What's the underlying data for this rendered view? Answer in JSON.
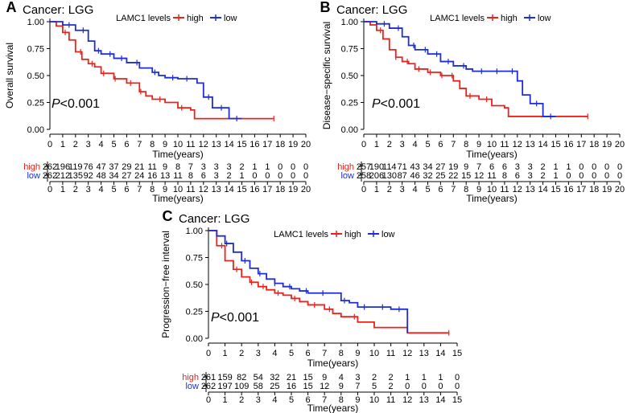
{
  "chart_data": [
    {
      "panel_label": "A",
      "type": "line",
      "title": "Cancer: LGG",
      "ylabel": "Overall survival",
      "xlabel": "Time(years)",
      "legend": {
        "title": "LAMC1 levels",
        "placement": "top-right",
        "entries": [
          "high",
          "low"
        ]
      },
      "pvalue_prefix": "P",
      "pvalue_rest": "<0.001",
      "xlim": [
        0,
        20
      ],
      "ylim": [
        0,
        1
      ],
      "x_ticks": [
        0,
        1,
        2,
        3,
        4,
        5,
        6,
        7,
        8,
        9,
        10,
        11,
        12,
        13,
        14,
        15,
        16,
        17,
        18,
        19,
        20
      ],
      "y_ticks": [
        "0.00",
        "0.25",
        "0.50",
        "0.75",
        "1.00"
      ],
      "series": [
        {
          "name": "high",
          "color": "#e8231c",
          "x": [
            0,
            0.5,
            1,
            1.5,
            2,
            2.5,
            3,
            3.5,
            4,
            5,
            6,
            7,
            7.5,
            8,
            9,
            10,
            11,
            11.3,
            12,
            13,
            14,
            15,
            16,
            17,
            17.5
          ],
          "y": [
            1.0,
            0.96,
            0.9,
            0.83,
            0.72,
            0.65,
            0.61,
            0.58,
            0.52,
            0.47,
            0.43,
            0.35,
            0.31,
            0.28,
            0.25,
            0.2,
            0.18,
            0.1,
            0.1,
            0.1,
            0.1,
            0.1,
            0.1,
            0.1,
            0.1
          ],
          "censor_x": [
            1.2,
            2.4,
            3.3,
            4.2,
            5.1,
            6.3,
            7.1,
            8.6,
            10.3,
            17.5
          ]
        },
        {
          "name": "low",
          "color": "#1f2ed1",
          "x": [
            0,
            1,
            2,
            3,
            3.5,
            4,
            5,
            6,
            7,
            8,
            8.5,
            9,
            10,
            11,
            11.5,
            12,
            12.7,
            13,
            14,
            14.5,
            15
          ],
          "y": [
            1.0,
            0.97,
            0.92,
            0.82,
            0.73,
            0.7,
            0.66,
            0.62,
            0.57,
            0.53,
            0.5,
            0.48,
            0.47,
            0.47,
            0.43,
            0.3,
            0.2,
            0.2,
            0.1,
            0.1,
            0.1
          ],
          "censor_x": [
            1.5,
            2.6,
            3.8,
            4.7,
            5.6,
            6.8,
            8.2,
            9.6,
            10.7,
            12.4,
            13.4,
            14.6
          ]
        }
      ],
      "risk_table": {
        "rows": [
          {
            "label": "high",
            "counts": [
              "262",
              "196",
              "119",
              "76",
              "47",
              "37",
              "29",
              "21",
              "11",
              "9",
              "8",
              "7",
              "3",
              "3",
              "3",
              "2",
              "1",
              "1",
              "0",
              "0",
              "0"
            ]
          },
          {
            "label": "low",
            "counts": [
              "262",
              "212",
              "135",
              "92",
              "48",
              "34",
              "27",
              "24",
              "16",
              "13",
              "11",
              "8",
              "6",
              "3",
              "2",
              "1",
              "0",
              "0",
              "0",
              "0",
              "0"
            ]
          }
        ],
        "xlabel": "Time(years)",
        "x_ticks": [
          0,
          1,
          2,
          3,
          4,
          5,
          6,
          7,
          8,
          9,
          10,
          11,
          12,
          13,
          14,
          15,
          16,
          17,
          18,
          19,
          20
        ]
      }
    },
    {
      "panel_label": "B",
      "type": "line",
      "title": "Cancer: LGG",
      "ylabel": "Disease−specific survival",
      "xlabel": "Time(years)",
      "legend": {
        "title": "LAMC1 levels",
        "placement": "top-right",
        "entries": [
          "high",
          "low"
        ]
      },
      "pvalue_prefix": "P",
      "pvalue_rest": "<0.001",
      "xlim": [
        0,
        20
      ],
      "ylim": [
        0,
        1
      ],
      "x_ticks": [
        0,
        1,
        2,
        3,
        4,
        5,
        6,
        7,
        8,
        9,
        10,
        11,
        12,
        13,
        14,
        15,
        16,
        17,
        18,
        19,
        20
      ],
      "y_ticks": [
        "0.00",
        "0.25",
        "0.50",
        "0.75",
        "1.00"
      ],
      "series": [
        {
          "name": "high",
          "color": "#e8231c",
          "x": [
            0,
            0.5,
            1,
            1.5,
            2,
            2.5,
            3,
            3.5,
            4,
            5,
            6,
            7,
            7.5,
            8,
            9,
            10,
            11,
            11.3,
            12,
            13,
            14,
            15,
            16,
            17,
            17.5
          ],
          "y": [
            1.0,
            0.97,
            0.92,
            0.84,
            0.74,
            0.67,
            0.63,
            0.61,
            0.56,
            0.53,
            0.5,
            0.45,
            0.38,
            0.31,
            0.28,
            0.22,
            0.2,
            0.12,
            0.12,
            0.12,
            0.12,
            0.12,
            0.12,
            0.12,
            0.12
          ],
          "censor_x": [
            1.3,
            2.5,
            3.4,
            4.3,
            5.2,
            6.1,
            6.9,
            8.3,
            9.6,
            17.5
          ]
        },
        {
          "name": "low",
          "color": "#1f2ed1",
          "x": [
            0,
            1,
            2,
            3,
            3.5,
            4,
            5,
            6,
            7,
            8,
            8.5,
            9,
            10,
            11,
            12,
            12.4,
            13,
            14,
            14.5,
            15
          ],
          "y": [
            1.0,
            0.98,
            0.94,
            0.86,
            0.78,
            0.74,
            0.7,
            0.63,
            0.59,
            0.56,
            0.54,
            0.54,
            0.54,
            0.54,
            0.45,
            0.32,
            0.24,
            0.12,
            0.12,
            0.12
          ],
          "censor_x": [
            1.6,
            2.7,
            3.9,
            4.8,
            5.7,
            6.6,
            7.8,
            9.2,
            10.4,
            11.6,
            13.5,
            14.6
          ]
        }
      ],
      "risk_table": {
        "rows": [
          {
            "label": "high",
            "counts": [
              "257",
              "190",
              "114",
              "71",
              "43",
              "34",
              "27",
              "19",
              "9",
              "7",
              "6",
              "6",
              "3",
              "3",
              "2",
              "1",
              "1",
              "0",
              "0",
              "0",
              "0"
            ]
          },
          {
            "label": "low",
            "counts": [
              "258",
              "206",
              "130",
              "87",
              "46",
              "32",
              "25",
              "22",
              "15",
              "12",
              "11",
              "8",
              "6",
              "3",
              "2",
              "1",
              "0",
              "0",
              "0",
              "0",
              "0"
            ]
          }
        ],
        "xlabel": "Time(years)",
        "x_ticks": [
          0,
          1,
          2,
          3,
          4,
          5,
          6,
          7,
          8,
          9,
          10,
          11,
          12,
          13,
          14,
          15,
          16,
          17,
          18,
          19,
          20
        ]
      }
    },
    {
      "panel_label": "C",
      "type": "line",
      "title": "Cancer: LGG",
      "ylabel": "Progression−free interval",
      "xlabel": "Time(years)",
      "legend": {
        "title": "LAMC1 levels",
        "placement": "top-right",
        "entries": [
          "high",
          "low"
        ]
      },
      "pvalue_prefix": "P",
      "pvalue_rest": "<0.001",
      "xlim": [
        0,
        15
      ],
      "ylim": [
        0,
        1
      ],
      "x_ticks": [
        0,
        1,
        2,
        3,
        4,
        5,
        6,
        7,
        8,
        9,
        10,
        11,
        12,
        13,
        14,
        15
      ],
      "y_ticks": [
        "0.00",
        "0.25",
        "0.50",
        "0.75",
        "1.00"
      ],
      "series": [
        {
          "name": "high",
          "color": "#e8231c",
          "x": [
            0,
            0.5,
            1,
            1.5,
            2,
            2.5,
            3,
            3.5,
            4,
            4.5,
            5,
            5.5,
            6,
            7,
            7.5,
            8,
            9,
            10,
            11,
            12,
            13,
            14,
            14.5
          ],
          "y": [
            1.0,
            0.86,
            0.72,
            0.64,
            0.57,
            0.52,
            0.48,
            0.45,
            0.42,
            0.4,
            0.37,
            0.34,
            0.31,
            0.27,
            0.23,
            0.2,
            0.15,
            0.1,
            0.1,
            0.05,
            0.05,
            0.05,
            0.05
          ],
          "censor_x": [
            0.8,
            1.7,
            2.6,
            3.3,
            4.2,
            5.2,
            6.4,
            7.3,
            8.8,
            14.5
          ]
        },
        {
          "name": "low",
          "color": "#1f2ed1",
          "x": [
            0,
            0.5,
            1,
            1.5,
            2,
            2.5,
            3,
            3.5,
            4,
            4.5,
            5,
            5.5,
            6,
            7,
            8,
            8.5,
            9,
            10,
            11,
            12
          ],
          "y": [
            1.0,
            0.95,
            0.88,
            0.8,
            0.72,
            0.65,
            0.6,
            0.55,
            0.51,
            0.48,
            0.46,
            0.44,
            0.42,
            0.42,
            0.35,
            0.33,
            0.29,
            0.29,
            0.27,
            0.05
          ],
          "censor_x": [
            1.1,
            2.2,
            3.1,
            4.0,
            4.9,
            5.9,
            6.9,
            8.2,
            9.4,
            10.5,
            11.5
          ]
        }
      ],
      "risk_table": {
        "rows": [
          {
            "label": "high",
            "counts": [
              "261",
              "159",
              "82",
              "54",
              "32",
              "21",
              "15",
              "9",
              "4",
              "3",
              "2",
              "2",
              "1",
              "1",
              "1",
              "0"
            ]
          },
          {
            "label": "low",
            "counts": [
              "262",
              "197",
              "109",
              "58",
              "25",
              "16",
              "15",
              "12",
              "9",
              "7",
              "5",
              "2",
              "0",
              "0",
              "0",
              "0"
            ]
          }
        ],
        "xlabel": "Time(years)",
        "x_ticks": [
          0,
          1,
          2,
          3,
          4,
          5,
          6,
          7,
          8,
          9,
          10,
          11,
          12,
          13,
          14,
          15
        ]
      }
    }
  ]
}
